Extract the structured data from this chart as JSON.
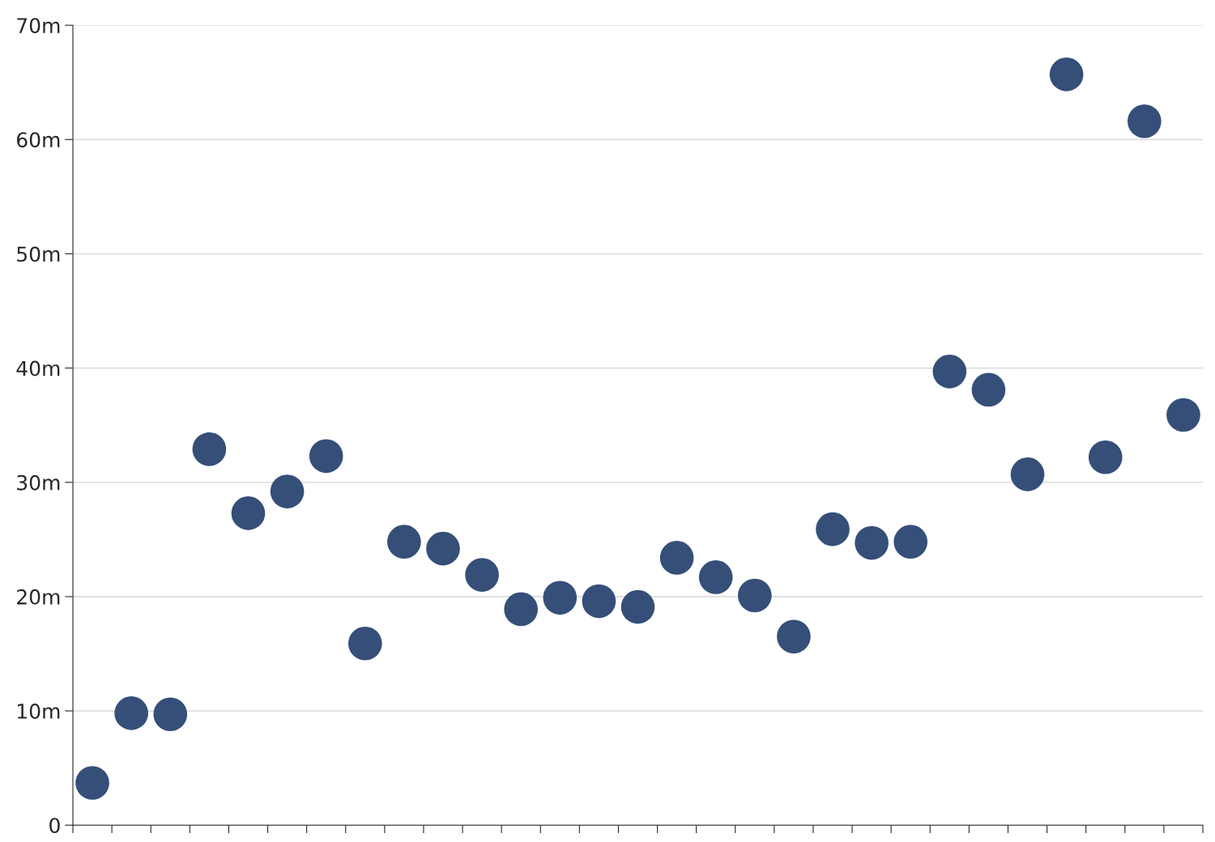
{
  "chart_data": {
    "type": "scatter",
    "categories": [
      null,
      null,
      null,
      null,
      null,
      null,
      null,
      null,
      null,
      null,
      null,
      null,
      null,
      null,
      null,
      null,
      null,
      null,
      null,
      null,
      null,
      null,
      null,
      null,
      null,
      null,
      null,
      null,
      null
    ],
    "series": [
      {
        "color": "#354f78",
        "values": [
          3.7,
          9.8,
          9.7,
          32.9,
          27.3,
          29.2,
          32.3,
          15.9,
          24.8,
          24.2,
          21.9,
          18.9,
          19.9,
          19.6,
          19.1,
          23.4,
          21.7,
          20.1,
          16.5,
          25.9,
          24.7,
          24.8,
          39.7,
          38.1,
          30.7,
          65.7,
          32.2,
          61.6,
          35.9
        ]
      }
    ],
    "ylim": [
      0,
      70
    ],
    "yticks": [
      0,
      {
        "value": 10,
        "label": "10m"
      },
      {
        "value": 20,
        "label": "20m"
      },
      {
        "value": 30,
        "label": "30m"
      },
      {
        "value": 40,
        "label": "40m"
      },
      {
        "value": 50,
        "label": "50m"
      },
      {
        "value": 60,
        "label": "60m"
      },
      {
        "value": 70,
        "label": "70m"
      }
    ],
    "grid": "y",
    "marker": "circle",
    "legend": false
  }
}
